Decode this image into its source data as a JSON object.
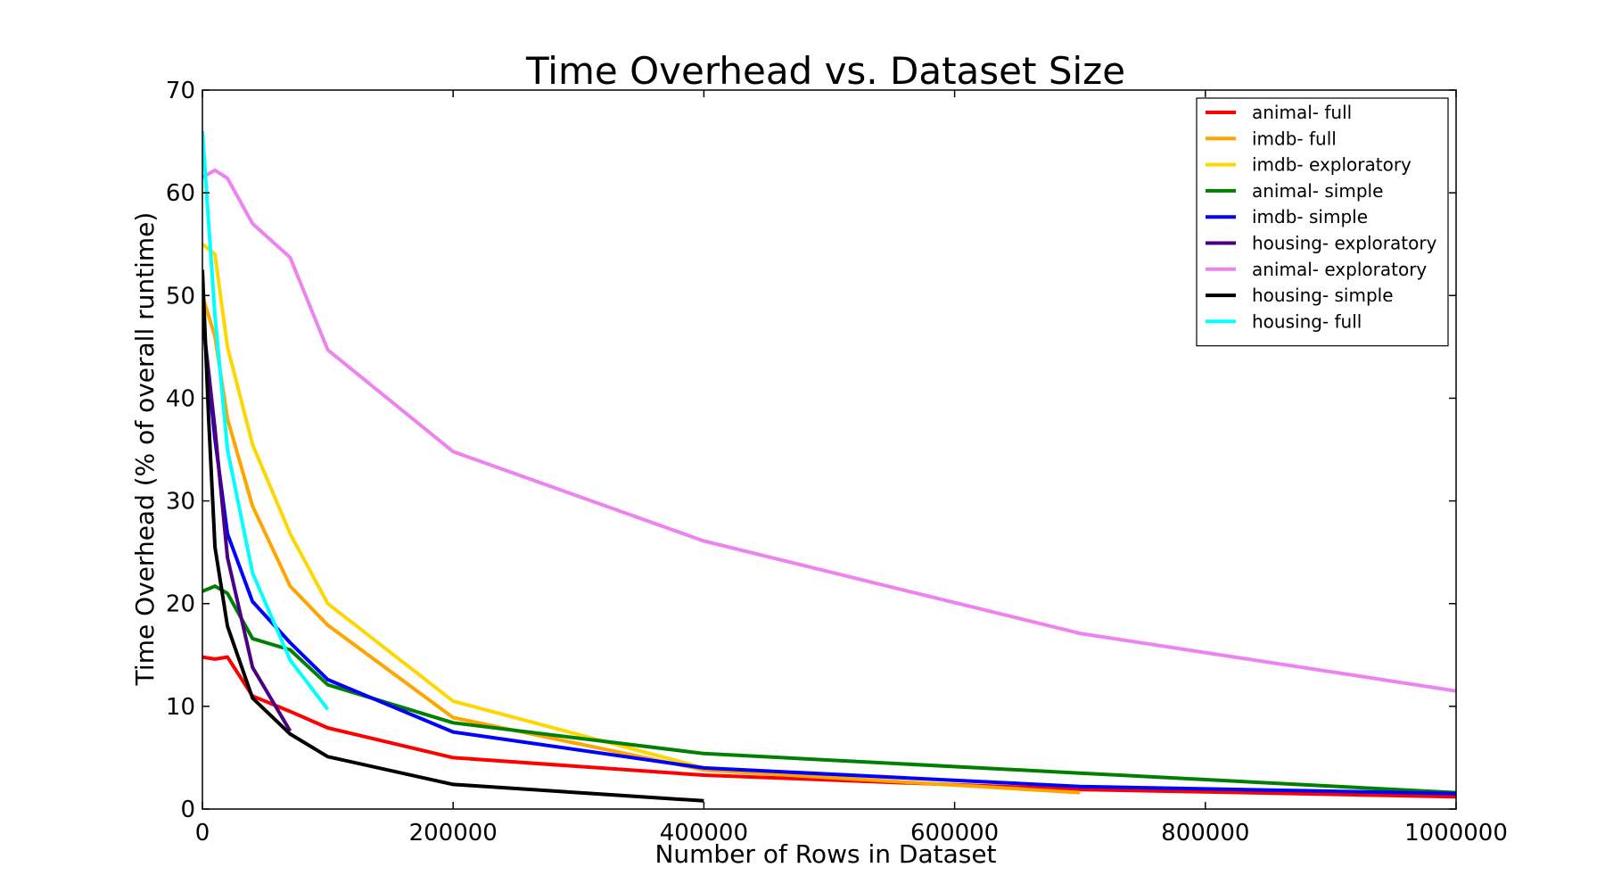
{
  "chart_data": {
    "type": "line",
    "title": "Time Overhead vs. Dataset Size",
    "xlabel": "Number of Rows in Dataset",
    "ylabel": "Time Overhead (% of overall runtime)",
    "xlim": [
      0,
      1000000
    ],
    "ylim": [
      0,
      70
    ],
    "xticks": [
      0,
      200000,
      400000,
      600000,
      800000,
      1000000
    ],
    "yticks": [
      0,
      10,
      20,
      30,
      40,
      50,
      60,
      70
    ],
    "grid": false,
    "legend_position": "top-right",
    "series": [
      {
        "name": "animal- full",
        "color": "#ff0000",
        "points": [
          [
            0,
            14.8
          ],
          [
            10000,
            14.6
          ],
          [
            20000,
            14.8
          ],
          [
            40000,
            11.0
          ],
          [
            70000,
            9.5
          ],
          [
            100000,
            7.9
          ],
          [
            200000,
            5.0
          ],
          [
            400000,
            3.3
          ],
          [
            700000,
            1.9
          ],
          [
            1000000,
            1.2
          ]
        ]
      },
      {
        "name": "imdb- full",
        "color": "#ffa500",
        "points": [
          [
            0,
            50
          ],
          [
            10000,
            46
          ],
          [
            20000,
            38
          ],
          [
            40000,
            29.5
          ],
          [
            70000,
            21.7
          ],
          [
            100000,
            17.9
          ],
          [
            200000,
            8.9
          ],
          [
            400000,
            3.8
          ],
          [
            700000,
            1.6
          ]
        ]
      },
      {
        "name": "imdb- exploratory",
        "color": "#ffd700",
        "points": [
          [
            0,
            55
          ],
          [
            10000,
            54
          ],
          [
            20000,
            45
          ],
          [
            40000,
            35.5
          ],
          [
            70000,
            26.8
          ],
          [
            100000,
            20
          ],
          [
            200000,
            10.5
          ],
          [
            400000,
            4.0
          ]
        ]
      },
      {
        "name": "animal- simple",
        "color": "#008000",
        "points": [
          [
            0,
            21.2
          ],
          [
            10000,
            21.7
          ],
          [
            20000,
            21.0
          ],
          [
            40000,
            16.6
          ],
          [
            70000,
            15.5
          ],
          [
            100000,
            12.1
          ],
          [
            200000,
            8.4
          ],
          [
            400000,
            5.4
          ],
          [
            700000,
            3.5
          ],
          [
            1000000,
            1.6
          ]
        ]
      },
      {
        "name": "imdb- simple",
        "color": "#0000ff",
        "points": [
          [
            0,
            48
          ],
          [
            10000,
            36
          ],
          [
            20000,
            26.8
          ],
          [
            40000,
            20.2
          ],
          [
            70000,
            16.2
          ],
          [
            100000,
            12.6
          ],
          [
            200000,
            7.5
          ],
          [
            400000,
            4.0
          ],
          [
            700000,
            2.2
          ],
          [
            1000000,
            1.5
          ]
        ]
      },
      {
        "name": "housing- exploratory",
        "color": "#4b0082",
        "points": [
          [
            0,
            48
          ],
          [
            10000,
            37
          ],
          [
            20000,
            24.5
          ],
          [
            40000,
            13.8
          ],
          [
            70000,
            7.6
          ]
        ]
      },
      {
        "name": "animal- exploratory",
        "color": "#ee82ee",
        "points": [
          [
            0,
            61.5
          ],
          [
            10000,
            62.2
          ],
          [
            20000,
            61.4
          ],
          [
            40000,
            57.0
          ],
          [
            70000,
            53.7
          ],
          [
            100000,
            44.7
          ],
          [
            200000,
            34.8
          ],
          [
            400000,
            26.1
          ],
          [
            700000,
            17.1
          ],
          [
            1000000,
            11.5
          ]
        ]
      },
      {
        "name": "housing- simple",
        "color": "#000000",
        "points": [
          [
            0,
            52.5
          ],
          [
            5000,
            38
          ],
          [
            10000,
            25.5
          ],
          [
            20000,
            17.8
          ],
          [
            40000,
            10.8
          ],
          [
            70000,
            7.3
          ],
          [
            100000,
            5.1
          ],
          [
            200000,
            2.4
          ],
          [
            400000,
            0.8
          ]
        ]
      },
      {
        "name": "housing- full",
        "color": "#00ffff",
        "points": [
          [
            0,
            66
          ],
          [
            10000,
            48
          ],
          [
            20000,
            35
          ],
          [
            40000,
            23
          ],
          [
            70000,
            14.5
          ],
          [
            100000,
            9.7
          ]
        ]
      }
    ]
  }
}
